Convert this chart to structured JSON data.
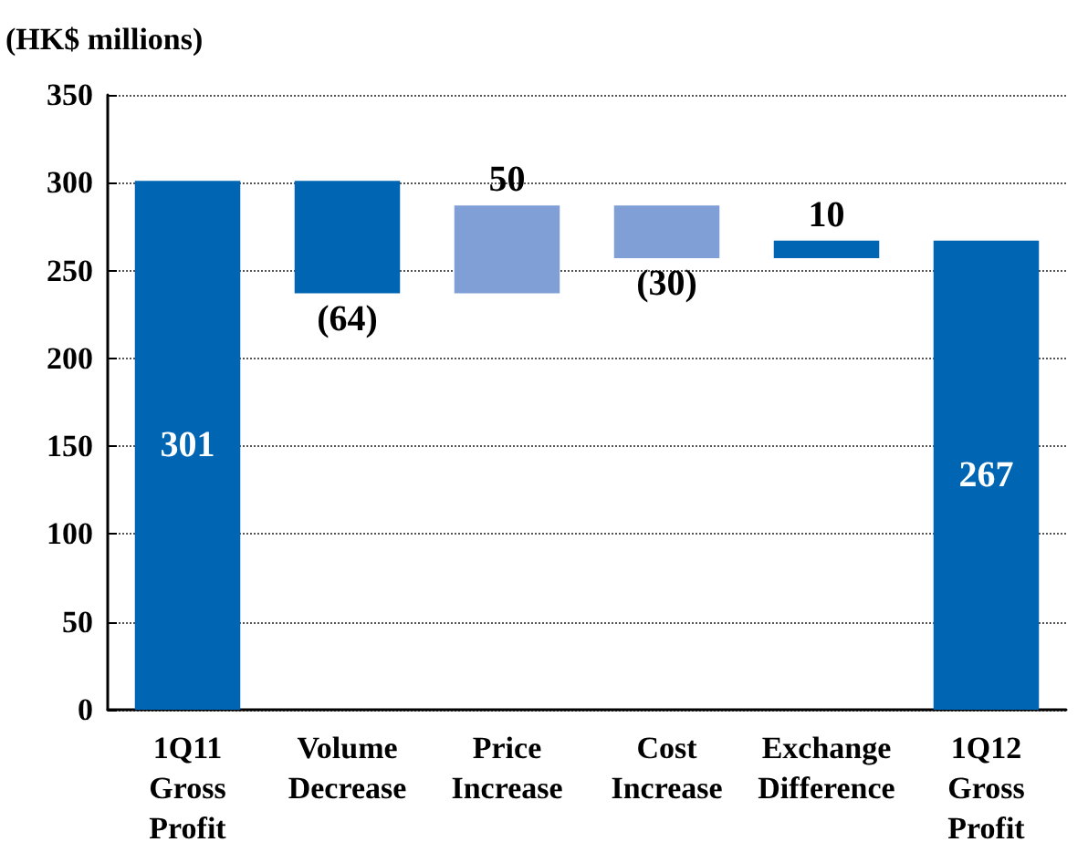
{
  "chart_data": {
    "type": "bar",
    "ylabel": "(HK$ millions)",
    "categories": [
      "1Q11\nGross\nProfit",
      "Volume\nDecrease",
      "Price\nIncrease",
      "Cost\nIncrease",
      "Exchange\nDifference",
      "1Q12\nGross\nProfit"
    ],
    "values": [
      301,
      -64,
      50,
      -30,
      10,
      267
    ],
    "base": [
      0,
      301,
      237,
      287,
      257,
      0
    ],
    "colors": [
      "#0066b3",
      "#0066b3",
      "#7f9fd6",
      "#7f9fd6",
      "#0066b3",
      "#0066b3"
    ],
    "value_labels": [
      "301",
      "(64)",
      "50",
      "(30)",
      "10",
      "267"
    ],
    "ylim": [
      0,
      350
    ],
    "yticks": [
      0,
      50,
      100,
      150,
      200,
      250,
      300,
      350
    ],
    "grid": "y"
  }
}
